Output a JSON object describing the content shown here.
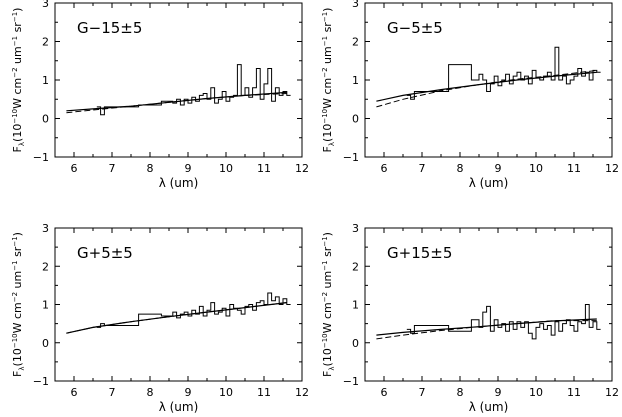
{
  "chart_data": [
    {
      "type": "line",
      "label": "G−15±5",
      "xlabel": "λ (um)",
      "ylabel_main": "F",
      "ylabel_sub": "λ",
      "ylabel_unit_a": "(10",
      "ylabel_unit_exp": "−10",
      "ylabel_unit_b": "W cm",
      "ylabel_unit_exp2": "−2",
      "ylabel_unit_c": " um",
      "ylabel_unit_exp3": "−1",
      "ylabel_unit_d": " sr",
      "ylabel_unit_exp4": "−1",
      "ylabel_unit_e": ")",
      "xlim": [
        5.5,
        12
      ],
      "ylim": [
        -1,
        3
      ],
      "xticks": [
        "6",
        "7",
        "8",
        "9",
        "10",
        "11",
        "12"
      ],
      "yticks": [
        "−1",
        "0",
        "1",
        "2",
        "3"
      ],
      "series": [
        {
          "style": "step",
          "x": [
            6.6,
            6.7,
            6.8,
            7.7,
            8.3,
            8.6,
            8.7,
            8.8,
            8.9,
            9.0,
            9.1,
            9.2,
            9.3,
            9.4,
            9.5,
            9.6,
            9.7,
            9.8,
            9.9,
            10.0,
            10.1,
            10.2,
            10.3,
            10.4,
            10.5,
            10.6,
            10.7,
            10.8,
            10.9,
            11.0,
            11.1,
            11.2,
            11.3,
            11.4,
            11.5,
            11.6
          ],
          "y": [
            0.3,
            0.1,
            0.3,
            0.35,
            0.45,
            0.4,
            0.5,
            0.35,
            0.5,
            0.4,
            0.55,
            0.45,
            0.6,
            0.65,
            0.5,
            0.8,
            0.4,
            0.5,
            0.7,
            0.45,
            0.55,
            0.6,
            1.4,
            0.6,
            0.8,
            0.55,
            0.8,
            1.3,
            0.5,
            0.9,
            1.3,
            0.45,
            0.8,
            0.6,
            0.7,
            0.6
          ]
        },
        {
          "style": "solid",
          "x": [
            5.8,
            6.5,
            7.5,
            8.5,
            9.5,
            10.5,
            11.6
          ],
          "y": [
            0.2,
            0.25,
            0.32,
            0.42,
            0.52,
            0.6,
            0.68
          ]
        },
        {
          "style": "dashed",
          "x": [
            5.8,
            6.5,
            7.5,
            8.5,
            9.5,
            10.5,
            11.6
          ],
          "y": [
            0.15,
            0.22,
            0.32,
            0.42,
            0.52,
            0.6,
            0.65
          ]
        }
      ]
    },
    {
      "type": "line",
      "label": "G−5±5",
      "xlabel": "λ (um)",
      "ylabel_main": "F",
      "ylabel_sub": "λ",
      "ylabel_unit_a": "(10",
      "ylabel_unit_exp": "−10",
      "ylabel_unit_b": "W cm",
      "ylabel_unit_exp2": "−2",
      "ylabel_unit_c": " um",
      "ylabel_unit_exp3": "−1",
      "ylabel_unit_d": " sr",
      "ylabel_unit_exp4": "−1",
      "ylabel_unit_e": ")",
      "xlim": [
        5.5,
        12
      ],
      "ylim": [
        -1,
        3
      ],
      "xticks": [
        "6",
        "7",
        "8",
        "9",
        "10",
        "11",
        "12"
      ],
      "yticks": [
        "−1",
        "0",
        "1",
        "2",
        "3"
      ],
      "series": [
        {
          "style": "step",
          "x": [
            6.6,
            6.7,
            6.8,
            7.7,
            8.3,
            8.5,
            8.6,
            8.7,
            8.8,
            8.9,
            9.0,
            9.1,
            9.2,
            9.3,
            9.4,
            9.5,
            9.6,
            9.7,
            9.8,
            9.9,
            10.0,
            10.1,
            10.2,
            10.3,
            10.4,
            10.5,
            10.6,
            10.7,
            10.8,
            10.9,
            11.0,
            11.1,
            11.2,
            11.3,
            11.4,
            11.5,
            11.6
          ],
          "y": [
            0.6,
            0.5,
            0.7,
            1.4,
            1.0,
            1.15,
            1.0,
            0.7,
            0.9,
            1.1,
            0.85,
            1.0,
            1.15,
            0.9,
            1.1,
            1.2,
            1.0,
            1.1,
            0.9,
            1.25,
            1.05,
            1.0,
            1.1,
            1.2,
            1.0,
            1.85,
            1.0,
            1.1,
            0.9,
            1.0,
            1.1,
            1.3,
            1.1,
            1.2,
            1.0,
            1.25,
            1.2
          ]
        },
        {
          "style": "solid",
          "x": [
            5.8,
            6.5,
            7.5,
            8.5,
            9.5,
            10.5,
            11.6
          ],
          "y": [
            0.45,
            0.6,
            0.75,
            0.88,
            1.0,
            1.1,
            1.2
          ]
        },
        {
          "style": "dashed",
          "x": [
            5.8,
            6.5,
            7.5,
            8.5,
            9.5,
            10.5,
            11.6
          ],
          "y": [
            0.3,
            0.5,
            0.72,
            0.88,
            1.02,
            1.12,
            1.25
          ]
        }
      ]
    },
    {
      "type": "line",
      "label": "G+5±5",
      "xlabel": "λ (um)",
      "ylabel_main": "F",
      "ylabel_sub": "λ",
      "ylabel_unit_a": "(10",
      "ylabel_unit_exp": "−10",
      "ylabel_unit_b": "W cm",
      "ylabel_unit_exp2": "−2",
      "ylabel_unit_c": " um",
      "ylabel_unit_exp3": "−1",
      "ylabel_unit_d": " sr",
      "ylabel_unit_exp4": "−1",
      "ylabel_unit_e": ")",
      "xlim": [
        5.5,
        12
      ],
      "ylim": [
        -1,
        3
      ],
      "xticks": [
        "6",
        "7",
        "8",
        "9",
        "10",
        "11",
        "12"
      ],
      "yticks": [
        "−1",
        "0",
        "1",
        "2",
        "3"
      ],
      "series": [
        {
          "style": "step",
          "x": [
            6.6,
            6.7,
            6.8,
            7.7,
            8.3,
            8.6,
            8.7,
            8.8,
            8.9,
            9.0,
            9.1,
            9.2,
            9.3,
            9.4,
            9.5,
            9.6,
            9.7,
            9.8,
            9.9,
            10.0,
            10.1,
            10.2,
            10.3,
            10.4,
            10.5,
            10.6,
            10.7,
            10.8,
            10.9,
            11.0,
            11.1,
            11.2,
            11.3,
            11.4,
            11.5,
            11.6
          ],
          "y": [
            0.4,
            0.5,
            0.45,
            0.75,
            0.7,
            0.8,
            0.65,
            0.75,
            0.8,
            0.7,
            0.85,
            0.75,
            0.95,
            0.7,
            0.85,
            1.05,
            0.75,
            0.8,
            0.9,
            0.7,
            1.0,
            0.9,
            0.85,
            0.75,
            0.95,
            1.0,
            0.85,
            1.05,
            1.1,
            1.0,
            1.3,
            1.1,
            1.2,
            1.0,
            1.15,
            1.0
          ]
        },
        {
          "style": "solid",
          "x": [
            5.8,
            6.5,
            7.5,
            8.5,
            9.5,
            10.5,
            11.6
          ],
          "y": [
            0.25,
            0.4,
            0.55,
            0.68,
            0.8,
            0.92,
            1.05
          ]
        },
        {
          "style": "dashed",
          "x": [
            5.8,
            6.5,
            7.5,
            8.5,
            9.5,
            10.5,
            11.6
          ],
          "y": [
            0.25,
            0.4,
            0.55,
            0.68,
            0.8,
            0.92,
            1.05
          ]
        }
      ]
    },
    {
      "type": "line",
      "label": "G+15±5",
      "xlabel": "λ (um)",
      "ylabel_main": "F",
      "ylabel_sub": "λ",
      "ylabel_unit_a": "(10",
      "ylabel_unit_exp": "−10",
      "ylabel_unit_b": "W cm",
      "ylabel_unit_exp2": "−2",
      "ylabel_unit_c": " um",
      "ylabel_unit_exp3": "−1",
      "ylabel_unit_d": " sr",
      "ylabel_unit_exp4": "−1",
      "ylabel_unit_e": ")",
      "xlim": [
        5.5,
        12
      ],
      "ylim": [
        -1,
        3
      ],
      "xticks": [
        "6",
        "7",
        "8",
        "9",
        "10",
        "11",
        "12"
      ],
      "yticks": [
        "−1",
        "0",
        "1",
        "2",
        "3"
      ],
      "series": [
        {
          "style": "step",
          "x": [
            6.6,
            6.7,
            6.8,
            7.7,
            8.3,
            8.5,
            8.6,
            8.7,
            8.8,
            8.9,
            9.0,
            9.1,
            9.2,
            9.3,
            9.4,
            9.5,
            9.6,
            9.7,
            9.8,
            9.9,
            10.0,
            10.1,
            10.2,
            10.3,
            10.4,
            10.5,
            10.6,
            10.7,
            10.8,
            10.9,
            11.0,
            11.1,
            11.2,
            11.3,
            11.4,
            11.5,
            11.6
          ],
          "y": [
            0.35,
            0.25,
            0.45,
            0.3,
            0.6,
            0.4,
            0.8,
            0.95,
            0.3,
            0.6,
            0.4,
            0.5,
            0.3,
            0.55,
            0.35,
            0.55,
            0.4,
            0.55,
            0.25,
            0.1,
            0.4,
            0.5,
            0.35,
            0.45,
            0.2,
            0.55,
            0.3,
            0.5,
            0.6,
            0.45,
            0.3,
            0.55,
            0.5,
            1.0,
            0.4,
            0.55,
            0.35
          ]
        },
        {
          "style": "solid",
          "x": [
            5.8,
            6.5,
            7.5,
            8.5,
            9.5,
            10.5,
            11.6
          ],
          "y": [
            0.2,
            0.27,
            0.35,
            0.42,
            0.5,
            0.57,
            0.62
          ]
        },
        {
          "style": "dashed",
          "x": [
            5.8,
            6.5,
            7.5,
            8.5,
            9.5,
            10.5,
            11.6
          ],
          "y": [
            0.1,
            0.2,
            0.32,
            0.42,
            0.5,
            0.58,
            0.58
          ]
        }
      ]
    }
  ]
}
